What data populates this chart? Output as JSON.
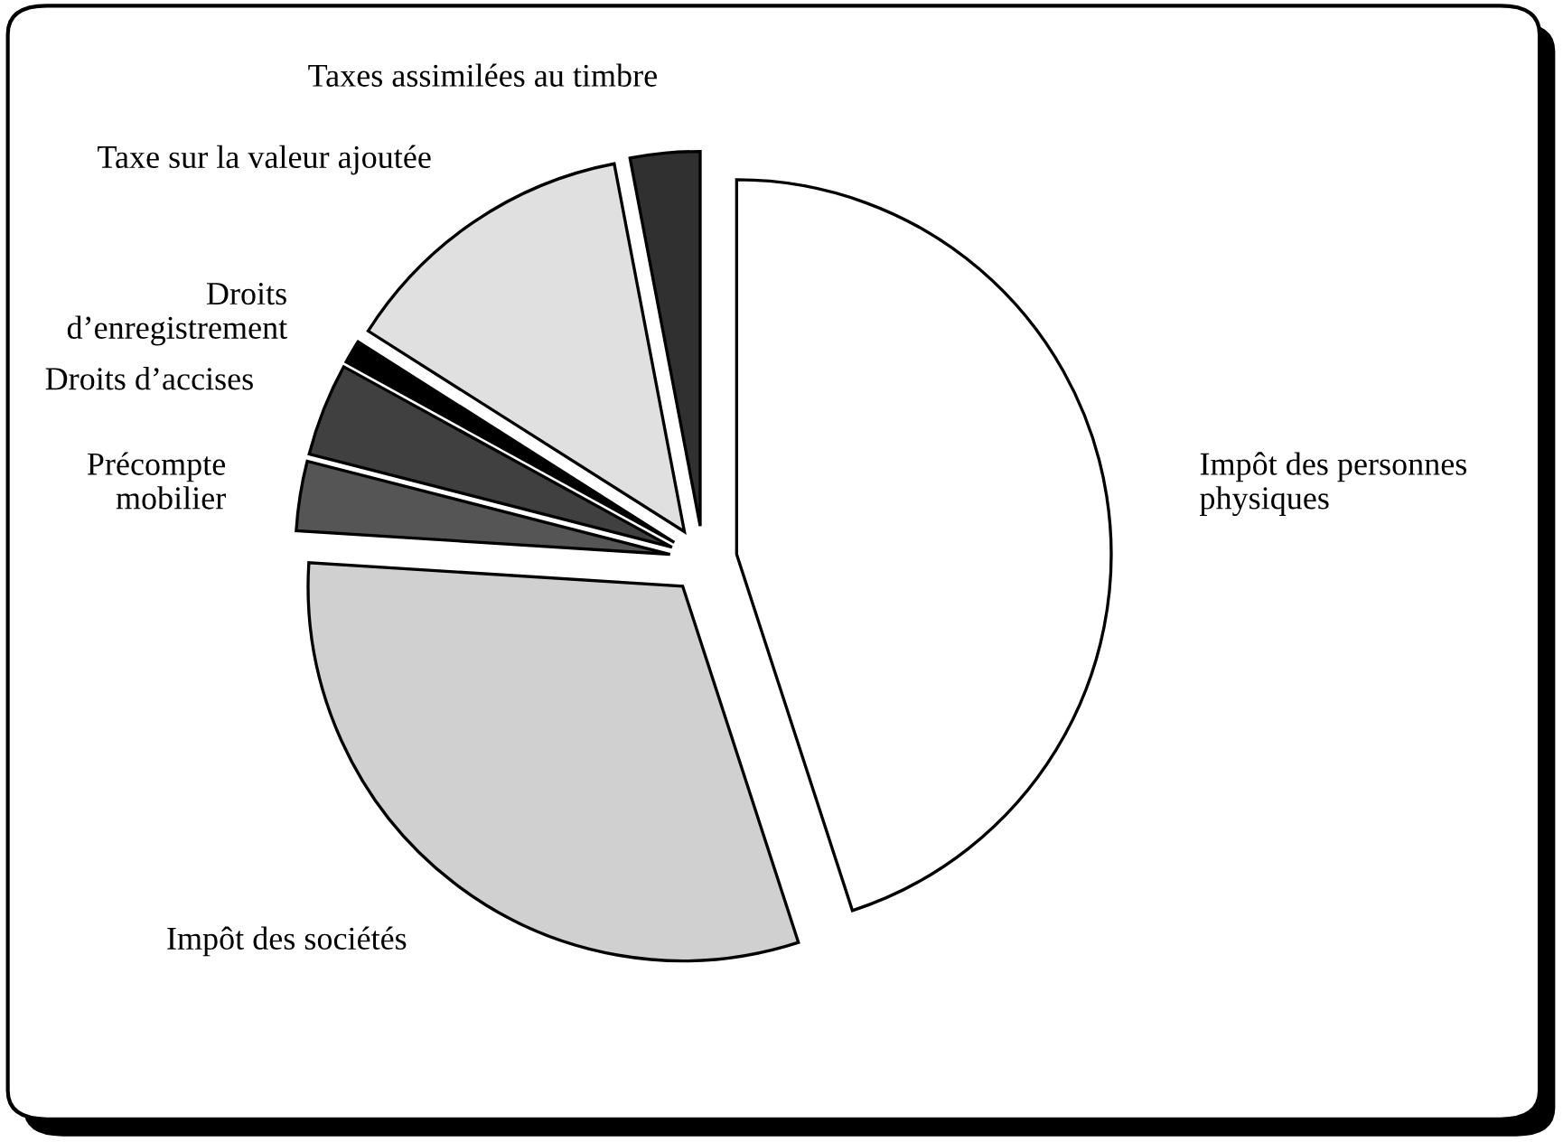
{
  "chart_data": {
    "type": "pie",
    "categories": [
      "Impôt des personnes physiques",
      "Impôt des sociétés",
      "Précompte mobilier",
      "Droits d’accises",
      "Droits d’enregistrement",
      "Taxe sur la valeur ajoutée",
      "Taxes assimilées au timbre"
    ],
    "values": [
      45,
      31,
      3,
      4,
      1,
      13,
      3
    ],
    "colors": [
      "#ffffff",
      "#d0d0d0",
      "#555555",
      "#404040",
      "#000000",
      "#e0e0e0",
      "#303030"
    ]
  }
}
